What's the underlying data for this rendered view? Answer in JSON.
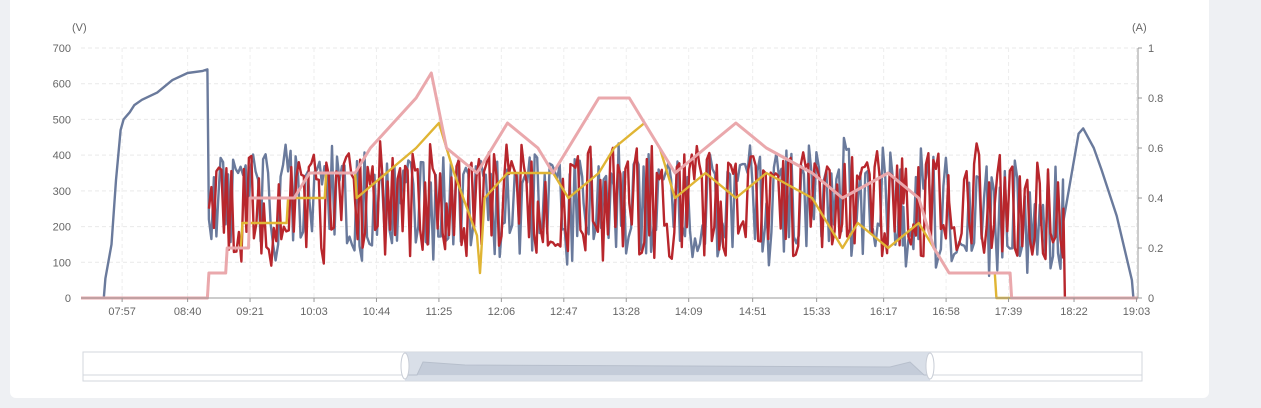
{
  "chart_data": {
    "type": "line",
    "left_axis_unit": "(V)",
    "right_axis_unit": "(A)",
    "y_left_ticks": [
      "0",
      "100",
      "200",
      "300",
      "400",
      "500",
      "600",
      "700"
    ],
    "y_right_ticks": [
      "0",
      "0.2",
      "0.4",
      "0.6",
      "0.8",
      "1"
    ],
    "ylim_left": [
      0,
      700
    ],
    "ylim_right": [
      0,
      1
    ],
    "x_tick_labels": [
      "07:57",
      "08:40",
      "09:21",
      "10:03",
      "10:44",
      "11:25",
      "12:06",
      "12:47",
      "13:28",
      "14:09",
      "14:51",
      "15:33",
      "16:17",
      "16:58",
      "17:39",
      "18:22",
      "19:03"
    ],
    "x_start": "07:30",
    "x_end": "19:04",
    "grid": true,
    "colors": {
      "series_blue": "#6a7a9c",
      "series_red": "#b8262c",
      "series_yellow": "#e0b534",
      "series_pink": "#eaa8ac"
    },
    "series": [
      {
        "axis": "left",
        "color": "#6a7a9c",
        "points": [
          [
            "07:30",
            0
          ],
          [
            "07:45",
            0
          ],
          [
            "07:46",
            55
          ],
          [
            "07:50",
            150
          ],
          [
            "07:53",
            330
          ],
          [
            "07:56",
            470
          ],
          [
            "07:58",
            500
          ],
          [
            "08:02",
            520
          ],
          [
            "08:05",
            540
          ],
          [
            "08:10",
            555
          ],
          [
            "08:20",
            575
          ],
          [
            "08:30",
            610
          ],
          [
            "08:40",
            630
          ],
          [
            "08:50",
            636
          ],
          [
            "08:53",
            640
          ],
          [
            "08:54",
            220
          ],
          [
            "09:00",
            270
          ],
          [
            "10:00",
            270
          ],
          [
            "11:00",
            265
          ],
          [
            "12:00",
            270
          ],
          [
            "13:00",
            265
          ],
          [
            "14:00",
            270
          ],
          [
            "15:00",
            265
          ],
          [
            "16:00",
            270
          ],
          [
            "16:30",
            255
          ],
          [
            "17:00",
            240
          ],
          [
            "17:30",
            225
          ],
          [
            "18:00",
            205
          ],
          [
            "18:15",
            215
          ],
          [
            "18:25",
            460
          ],
          [
            "18:28",
            475
          ],
          [
            "18:35",
            420
          ],
          [
            "18:40",
            360
          ],
          [
            "18:50",
            230
          ],
          [
            "19:00",
            50
          ],
          [
            "19:01",
            0
          ],
          [
            "19:04",
            0
          ]
        ]
      },
      {
        "axis": "left",
        "color": "#b8262c",
        "points": [
          [
            "08:54",
            250
          ],
          [
            "09:30",
            265
          ],
          [
            "10:30",
            270
          ],
          [
            "11:30",
            265
          ],
          [
            "12:30",
            270
          ],
          [
            "13:30",
            265
          ],
          [
            "14:30",
            270
          ],
          [
            "15:30",
            265
          ],
          [
            "16:30",
            265
          ],
          [
            "17:00",
            270
          ],
          [
            "17:30",
            265
          ],
          [
            "18:00",
            250
          ],
          [
            "18:15",
            250
          ],
          [
            "18:16",
            0
          ],
          [
            "19:04",
            0
          ]
        ]
      },
      {
        "axis": "right",
        "color": "#e0b534",
        "points": [
          [
            "07:30",
            0
          ],
          [
            "08:53",
            0
          ],
          [
            "08:54",
            0.1
          ],
          [
            "09:05",
            0.1
          ],
          [
            "09:06",
            0.2
          ],
          [
            "09:15",
            0.2
          ],
          [
            "09:16",
            0.3
          ],
          [
            "09:45",
            0.3
          ],
          [
            "09:46",
            0.4
          ],
          [
            "10:10",
            0.4
          ],
          [
            "10:11",
            0.5
          ],
          [
            "10:30",
            0.5
          ],
          [
            "10:31",
            0.4
          ],
          [
            "11:10",
            0.6
          ],
          [
            "11:25",
            0.7
          ],
          [
            "11:35",
            0.5
          ],
          [
            "11:50",
            0.25
          ],
          [
            "11:52",
            0.1
          ],
          [
            "11:55",
            0.4
          ],
          [
            "12:10",
            0.5
          ],
          [
            "12:40",
            0.5
          ],
          [
            "12:50",
            0.4
          ],
          [
            "13:10",
            0.5
          ],
          [
            "13:20",
            0.6
          ],
          [
            "13:40",
            0.7
          ],
          [
            "13:50",
            0.6
          ],
          [
            "14:00",
            0.4
          ],
          [
            "14:20",
            0.5
          ],
          [
            "14:40",
            0.4
          ],
          [
            "15:00",
            0.5
          ],
          [
            "15:30",
            0.4
          ],
          [
            "15:40",
            0.3
          ],
          [
            "15:50",
            0.2
          ],
          [
            "16:00",
            0.3
          ],
          [
            "16:20",
            0.2
          ],
          [
            "16:40",
            0.3
          ],
          [
            "16:50",
            0.2
          ],
          [
            "17:00",
            0.1
          ],
          [
            "17:30",
            0.1
          ],
          [
            "17:31",
            0
          ],
          [
            "19:04",
            0
          ]
        ]
      },
      {
        "axis": "right",
        "color": "#eaa8ac",
        "points": [
          [
            "07:30",
            0
          ],
          [
            "08:53",
            0
          ],
          [
            "08:54",
            0.1
          ],
          [
            "09:05",
            0.1
          ],
          [
            "09:06",
            0.2
          ],
          [
            "09:20",
            0.2
          ],
          [
            "09:21",
            0.4
          ],
          [
            "09:50",
            0.4
          ],
          [
            "10:00",
            0.5
          ],
          [
            "10:30",
            0.5
          ],
          [
            "10:40",
            0.6
          ],
          [
            "11:10",
            0.8
          ],
          [
            "11:20",
            0.9
          ],
          [
            "11:30",
            0.6
          ],
          [
            "11:50",
            0.5
          ],
          [
            "12:10",
            0.7
          ],
          [
            "12:30",
            0.6
          ],
          [
            "12:40",
            0.5
          ],
          [
            "13:10",
            0.8
          ],
          [
            "13:30",
            0.8
          ],
          [
            "13:40",
            0.7
          ],
          [
            "14:00",
            0.5
          ],
          [
            "14:20",
            0.6
          ],
          [
            "14:40",
            0.7
          ],
          [
            "15:00",
            0.6
          ],
          [
            "15:30",
            0.5
          ],
          [
            "15:50",
            0.4
          ],
          [
            "16:20",
            0.5
          ],
          [
            "16:40",
            0.4
          ],
          [
            "16:50",
            0.2
          ],
          [
            "17:00",
            0.1
          ],
          [
            "17:40",
            0.1
          ],
          [
            "17:41",
            0
          ],
          [
            "19:04",
            0
          ]
        ]
      }
    ]
  }
}
